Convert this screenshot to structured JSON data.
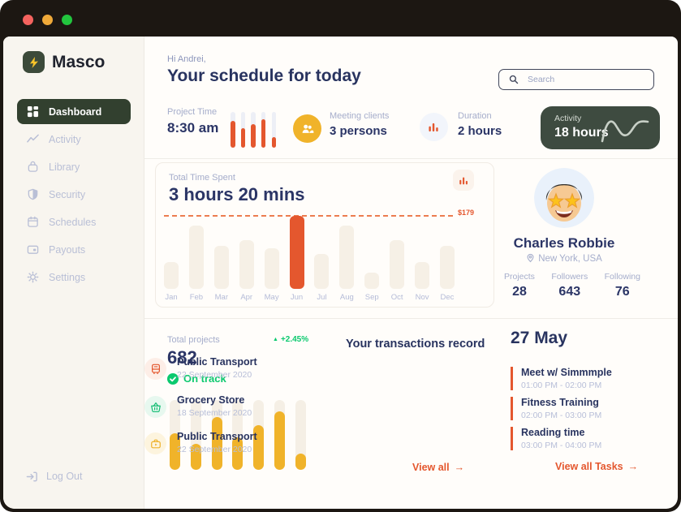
{
  "window": {
    "controls": [
      "close",
      "minimize",
      "zoom"
    ]
  },
  "sidebar": {
    "logo": {
      "text": "Masco"
    },
    "items": [
      {
        "label": "Dashboard",
        "icon": "grid-icon",
        "active": true
      },
      {
        "label": "Activity",
        "icon": "activity-icon",
        "active": false
      },
      {
        "label": "Library",
        "icon": "library-icon",
        "active": false
      },
      {
        "label": "Security",
        "icon": "shield-icon",
        "active": false
      },
      {
        "label": "Schedules",
        "icon": "calendar-icon",
        "active": false
      },
      {
        "label": "Payouts",
        "icon": "card-icon",
        "active": false
      },
      {
        "label": "Settings",
        "icon": "gear-icon",
        "active": false
      }
    ],
    "logout": "Log Out"
  },
  "header": {
    "greeting": "Hi Andrei,",
    "title": "Your schedule for today",
    "search_placeholder": "Search"
  },
  "stats": {
    "project_time": {
      "label": "Project Time",
      "value": "8:30 am"
    },
    "meeting_clients": {
      "label": "Meeting clients",
      "value": "3 persons",
      "icon": "people-icon"
    },
    "duration": {
      "label": "Duration",
      "value": "2 hours",
      "icon": "bars-icon"
    },
    "activity": {
      "label": "Activity",
      "value": "18 hours",
      "icon": "sparkline-icon"
    }
  },
  "time_card": {
    "label": "Total Time Spent",
    "value": "3 hours 20 mins",
    "threshold_label": "$179"
  },
  "profile": {
    "name": "Charles Robbie",
    "location": "New York, USA",
    "stats": [
      {
        "label": "Projects",
        "value": "28"
      },
      {
        "label": "Followers",
        "value": "643"
      },
      {
        "label": "Following",
        "value": "76"
      }
    ]
  },
  "projects_panel": {
    "label": "Total projects",
    "value": "682",
    "trend": "+2.45%",
    "status": "On track"
  },
  "transactions": {
    "title": "Your transactions record",
    "view_all": "View all",
    "items": [
      {
        "title": "Public Transport",
        "date": "22 September 2020",
        "icon": "bus-icon"
      },
      {
        "title": "Grocery Store",
        "date": "18 September 2020",
        "icon": "basket-icon"
      },
      {
        "title": "Public Transport",
        "date": "22 September 2020",
        "icon": "briefcase-icon"
      }
    ]
  },
  "tasks": {
    "date": "27 May",
    "view_all": "View all Tasks",
    "items": [
      {
        "title": "Meet w/ Simmmple",
        "time": "01:00 PM - 02:00 PM"
      },
      {
        "title": "Fitness Training",
        "time": "02:00 PM - 03:00 PM"
      },
      {
        "title": "Reading time",
        "time": "03:00 PM - 04:00 PM"
      }
    ]
  },
  "chart_data": [
    {
      "type": "bar",
      "title": "Total Time Spent — monthly spending",
      "categories": [
        "Jan",
        "Feb",
        "Mar",
        "Apr",
        "May",
        "Jun",
        "Jul",
        "Aug",
        "Sep",
        "Oct",
        "Nov",
        "Dec"
      ],
      "values": [
        65,
        155,
        105,
        120,
        100,
        179,
        85,
        155,
        40,
        120,
        65,
        105
      ],
      "ylim": [
        0,
        190
      ],
      "unit": "$",
      "highlight_index": 5,
      "highlight_category": "Jun",
      "threshold": {
        "value": 179,
        "label": "$179",
        "style": "dashed"
      },
      "grid": false,
      "legend": false
    },
    {
      "type": "bar",
      "title": "Project Time mini chart",
      "values_pct_of_track": [
        75,
        55,
        65,
        80,
        30
      ]
    },
    {
      "type": "bar",
      "title": "Total projects progress",
      "values_pct_of_track": [
        52,
        37,
        76,
        46,
        64,
        84,
        23
      ]
    }
  ],
  "icons": {
    "arrow_right": "→",
    "trend_up": "▲"
  },
  "colors": {
    "accent_orange": "#e4572e",
    "accent_yellow": "#f0b32a",
    "accent_green": "#0bc96e",
    "navy": "#2b3566",
    "nav_active_green": "#32402f",
    "activity_card_green": "#3e4b40",
    "sidebar_bg": "#f8f5ef",
    "frame_dark": "#1c1712"
  }
}
